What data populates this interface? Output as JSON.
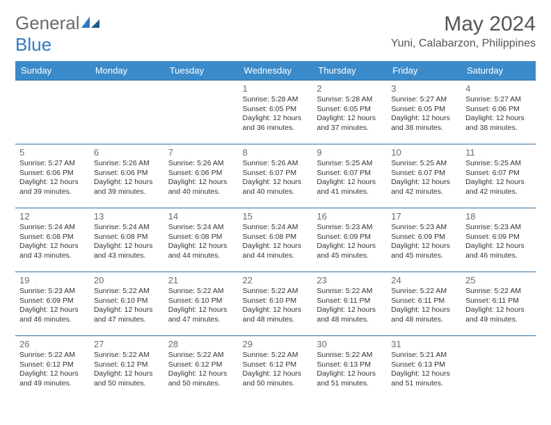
{
  "brand": {
    "text1": "General",
    "text2": "Blue"
  },
  "title": "May 2024",
  "location": "Yuni, Calabarzon, Philippines",
  "header_bg": "#3b8bca",
  "row_border": "#2f6fa5",
  "weekdays": [
    "Sunday",
    "Monday",
    "Tuesday",
    "Wednesday",
    "Thursday",
    "Friday",
    "Saturday"
  ],
  "weeks": [
    [
      null,
      null,
      null,
      {
        "n": "1",
        "sr": "5:28 AM",
        "ss": "6:05 PM",
        "dl": "12 hours and 36 minutes."
      },
      {
        "n": "2",
        "sr": "5:28 AM",
        "ss": "6:05 PM",
        "dl": "12 hours and 37 minutes."
      },
      {
        "n": "3",
        "sr": "5:27 AM",
        "ss": "6:05 PM",
        "dl": "12 hours and 38 minutes."
      },
      {
        "n": "4",
        "sr": "5:27 AM",
        "ss": "6:06 PM",
        "dl": "12 hours and 38 minutes."
      }
    ],
    [
      {
        "n": "5",
        "sr": "5:27 AM",
        "ss": "6:06 PM",
        "dl": "12 hours and 39 minutes."
      },
      {
        "n": "6",
        "sr": "5:26 AM",
        "ss": "6:06 PM",
        "dl": "12 hours and 39 minutes."
      },
      {
        "n": "7",
        "sr": "5:26 AM",
        "ss": "6:06 PM",
        "dl": "12 hours and 40 minutes."
      },
      {
        "n": "8",
        "sr": "5:26 AM",
        "ss": "6:07 PM",
        "dl": "12 hours and 40 minutes."
      },
      {
        "n": "9",
        "sr": "5:25 AM",
        "ss": "6:07 PM",
        "dl": "12 hours and 41 minutes."
      },
      {
        "n": "10",
        "sr": "5:25 AM",
        "ss": "6:07 PM",
        "dl": "12 hours and 42 minutes."
      },
      {
        "n": "11",
        "sr": "5:25 AM",
        "ss": "6:07 PM",
        "dl": "12 hours and 42 minutes."
      }
    ],
    [
      {
        "n": "12",
        "sr": "5:24 AM",
        "ss": "6:08 PM",
        "dl": "12 hours and 43 minutes."
      },
      {
        "n": "13",
        "sr": "5:24 AM",
        "ss": "6:08 PM",
        "dl": "12 hours and 43 minutes."
      },
      {
        "n": "14",
        "sr": "5:24 AM",
        "ss": "6:08 PM",
        "dl": "12 hours and 44 minutes."
      },
      {
        "n": "15",
        "sr": "5:24 AM",
        "ss": "6:08 PM",
        "dl": "12 hours and 44 minutes."
      },
      {
        "n": "16",
        "sr": "5:23 AM",
        "ss": "6:09 PM",
        "dl": "12 hours and 45 minutes."
      },
      {
        "n": "17",
        "sr": "5:23 AM",
        "ss": "6:09 PM",
        "dl": "12 hours and 45 minutes."
      },
      {
        "n": "18",
        "sr": "5:23 AM",
        "ss": "6:09 PM",
        "dl": "12 hours and 46 minutes."
      }
    ],
    [
      {
        "n": "19",
        "sr": "5:23 AM",
        "ss": "6:09 PM",
        "dl": "12 hours and 46 minutes."
      },
      {
        "n": "20",
        "sr": "5:22 AM",
        "ss": "6:10 PM",
        "dl": "12 hours and 47 minutes."
      },
      {
        "n": "21",
        "sr": "5:22 AM",
        "ss": "6:10 PM",
        "dl": "12 hours and 47 minutes."
      },
      {
        "n": "22",
        "sr": "5:22 AM",
        "ss": "6:10 PM",
        "dl": "12 hours and 48 minutes."
      },
      {
        "n": "23",
        "sr": "5:22 AM",
        "ss": "6:11 PM",
        "dl": "12 hours and 48 minutes."
      },
      {
        "n": "24",
        "sr": "5:22 AM",
        "ss": "6:11 PM",
        "dl": "12 hours and 48 minutes."
      },
      {
        "n": "25",
        "sr": "5:22 AM",
        "ss": "6:11 PM",
        "dl": "12 hours and 49 minutes."
      }
    ],
    [
      {
        "n": "26",
        "sr": "5:22 AM",
        "ss": "6:12 PM",
        "dl": "12 hours and 49 minutes."
      },
      {
        "n": "27",
        "sr": "5:22 AM",
        "ss": "6:12 PM",
        "dl": "12 hours and 50 minutes."
      },
      {
        "n": "28",
        "sr": "5:22 AM",
        "ss": "6:12 PM",
        "dl": "12 hours and 50 minutes."
      },
      {
        "n": "29",
        "sr": "5:22 AM",
        "ss": "6:12 PM",
        "dl": "12 hours and 50 minutes."
      },
      {
        "n": "30",
        "sr": "5:22 AM",
        "ss": "6:13 PM",
        "dl": "12 hours and 51 minutes."
      },
      {
        "n": "31",
        "sr": "5:21 AM",
        "ss": "6:13 PM",
        "dl": "12 hours and 51 minutes."
      },
      null
    ]
  ],
  "labels": {
    "sunrise": "Sunrise:",
    "sunset": "Sunset:",
    "daylight": "Daylight:"
  }
}
